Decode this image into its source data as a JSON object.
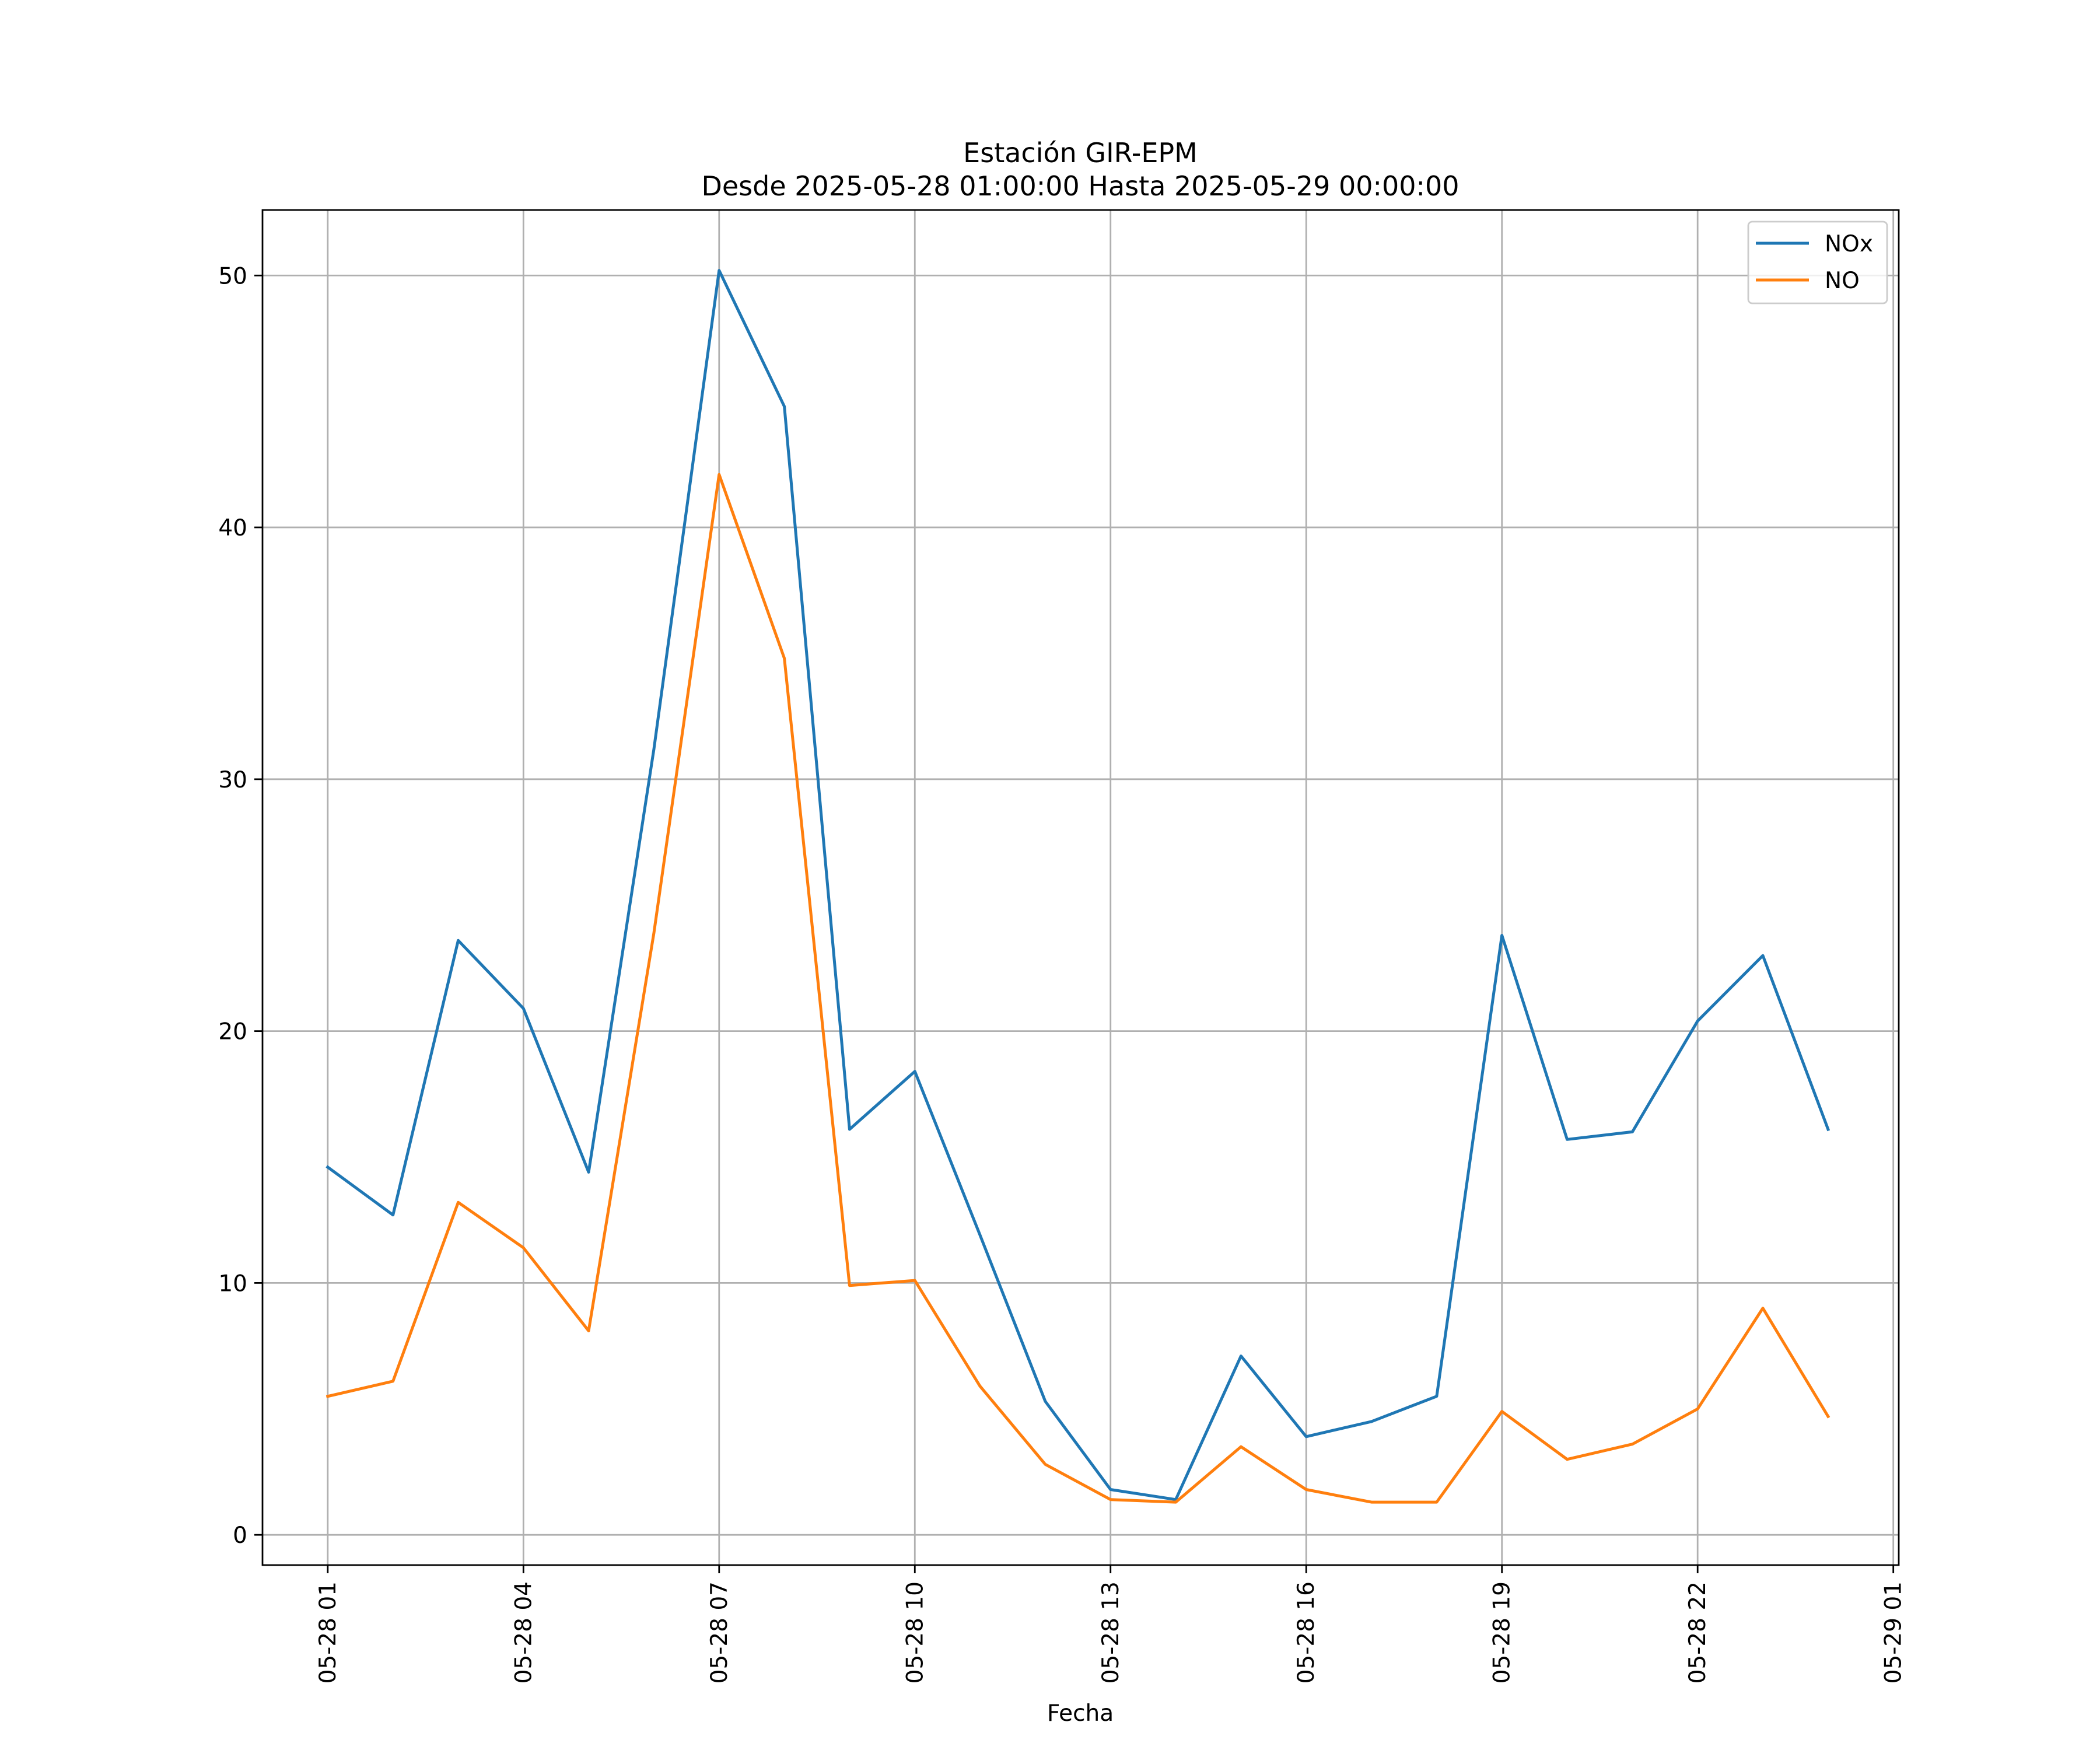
{
  "chart_data": {
    "type": "line",
    "title": "Estación GIR-EPM",
    "subtitle": "Desde 2025-05-28 01:00:00 Hasta 2025-05-29 00:00:00",
    "xlabel": "Fecha",
    "ylabel": "",
    "x": [
      "2025-05-28 01:00",
      "2025-05-28 02:00",
      "2025-05-28 03:00",
      "2025-05-28 04:00",
      "2025-05-28 05:00",
      "2025-05-28 06:00",
      "2025-05-28 07:00",
      "2025-05-28 08:00",
      "2025-05-28 09:00",
      "2025-05-28 10:00",
      "2025-05-28 11:00",
      "2025-05-28 12:00",
      "2025-05-28 13:00",
      "2025-05-28 14:00",
      "2025-05-28 15:00",
      "2025-05-28 16:00",
      "2025-05-28 17:00",
      "2025-05-28 18:00",
      "2025-05-28 19:00",
      "2025-05-28 20:00",
      "2025-05-28 21:00",
      "2025-05-28 22:00",
      "2025-05-28 23:00",
      "2025-05-29 00:00"
    ],
    "x_ticks": [
      "05-28 01",
      "05-28 04",
      "05-28 07",
      "05-28 10",
      "05-28 13",
      "05-28 16",
      "05-28 19",
      "05-28 22",
      "05-29 01"
    ],
    "x_tick_values": [
      "2025-05-28 01:00",
      "2025-05-28 04:00",
      "2025-05-28 07:00",
      "2025-05-28 10:00",
      "2025-05-28 13:00",
      "2025-05-28 16:00",
      "2025-05-28 19:00",
      "2025-05-28 22:00",
      "2025-05-29 01:00"
    ],
    "xlim": [
      "2025-05-28 00:00",
      "2025-05-29 01:05"
    ],
    "y_ticks": [
      0,
      10,
      20,
      30,
      40,
      50
    ],
    "y_tick_labels": [
      "0",
      "10",
      "20",
      "30",
      "40",
      "50"
    ],
    "ylim": [
      -1.2,
      52.6
    ],
    "grid": true,
    "legend_position": "top-right",
    "series": [
      {
        "name": "NOx",
        "color": "#1f77b4",
        "values": [
          14.6,
          12.7,
          23.6,
          20.9,
          14.4,
          31.2,
          50.2,
          44.8,
          16.1,
          18.4,
          11.9,
          5.3,
          1.8,
          1.4,
          7.1,
          3.9,
          4.5,
          5.5,
          23.8,
          15.7,
          16.0,
          20.4,
          23.0,
          16.1
        ]
      },
      {
        "name": "NO",
        "color": "#ff7f0e",
        "values": [
          5.5,
          6.1,
          13.2,
          11.4,
          8.1,
          23.9,
          42.1,
          34.8,
          9.9,
          10.1,
          5.9,
          2.8,
          1.4,
          1.3,
          3.5,
          1.8,
          1.3,
          1.3,
          4.9,
          3.0,
          3.6,
          5.0,
          9.0,
          4.7
        ]
      }
    ]
  }
}
